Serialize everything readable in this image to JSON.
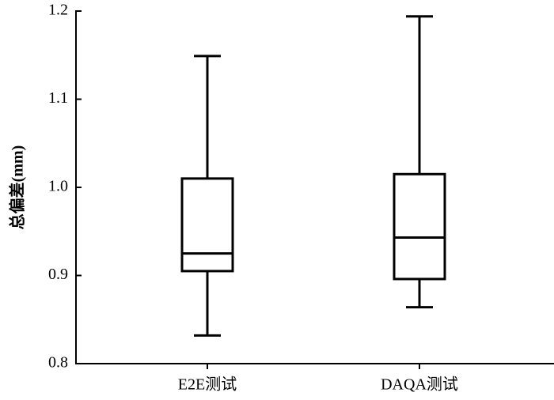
{
  "chart_data": {
    "type": "box",
    "y_label": "总偏差(mm)",
    "categories": [
      "E2E测试",
      "DAQA测试"
    ],
    "min": [
      0.832,
      0.864
    ],
    "q1": [
      0.905,
      0.896
    ],
    "median": [
      0.925,
      0.943
    ],
    "q3": [
      1.01,
      1.015
    ],
    "max": [
      1.149,
      1.194
    ],
    "color": "#000000",
    "ylim": [
      0.8,
      1.2
    ],
    "yticks": [
      {
        "value": 0.8,
        "label": "0.8"
      },
      {
        "value": 0.9,
        "label": "0.9"
      },
      {
        "value": 1.0,
        "label": "1.0"
      },
      {
        "value": 1.1,
        "label": "1.1"
      },
      {
        "value": 1.2,
        "label": "1.2"
      }
    ]
  }
}
